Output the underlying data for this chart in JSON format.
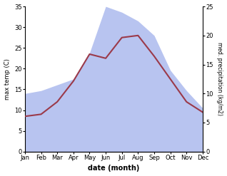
{
  "months": [
    "Jan",
    "Feb",
    "Mar",
    "Apr",
    "May",
    "Jun",
    "Jul",
    "Aug",
    "Sep",
    "Oct",
    "Nov",
    "Dec"
  ],
  "temp": [
    8.5,
    9.0,
    12.0,
    17.0,
    23.5,
    22.5,
    27.5,
    28.0,
    23.0,
    17.5,
    12.0,
    9.5
  ],
  "precip": [
    10.0,
    10.5,
    11.5,
    12.5,
    17.0,
    25.0,
    24.0,
    22.5,
    20.0,
    14.0,
    10.5,
    7.5
  ],
  "temp_color": "#9b3a4a",
  "precip_fill_color": "#b8c4f0",
  "left_ylabel": "max temp (C)",
  "right_ylabel": "med. precipitation (kg/m2)",
  "xlabel": "date (month)",
  "left_ylim": [
    0,
    35
  ],
  "right_ylim": [
    0,
    25
  ],
  "left_yticks": [
    0,
    5,
    10,
    15,
    20,
    25,
    30,
    35
  ],
  "right_yticks": [
    0,
    5,
    10,
    15,
    20,
    25
  ],
  "bg_color": "#ffffff",
  "fig_width": 3.18,
  "fig_height": 2.47,
  "dpi": 100
}
